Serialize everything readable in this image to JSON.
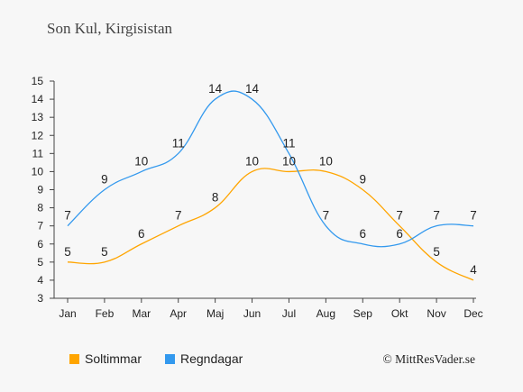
{
  "chart_data": {
    "type": "line",
    "title": "Son Kul, Kirgisistan",
    "categories": [
      "Jan",
      "Feb",
      "Mar",
      "Apr",
      "Maj",
      "Jun",
      "Jul",
      "Aug",
      "Sep",
      "Okt",
      "Nov",
      "Dec"
    ],
    "yticks": [
      "3",
      "4",
      "5",
      "6",
      "7",
      "8",
      "9",
      "10",
      "11",
      "12",
      "13",
      "14",
      "15"
    ],
    "ylim": [
      3,
      15
    ],
    "grid": false,
    "legend_position": "bottom-left",
    "series": [
      {
        "name": "Soltimmar",
        "color": "#FFA500",
        "values": [
          5,
          5,
          6,
          7,
          8,
          10,
          10,
          10,
          9,
          7,
          5,
          4
        ],
        "labels": [
          "5",
          "5",
          "6",
          "7",
          "8",
          "10",
          "10",
          "10",
          "9",
          "7",
          "5",
          "4"
        ]
      },
      {
        "name": "Regndagar",
        "color": "#3399EE",
        "values": [
          7,
          9,
          10,
          11,
          14,
          14,
          11,
          7,
          6,
          6,
          7,
          7
        ],
        "labels": [
          "7",
          "9",
          "10",
          "11",
          "14",
          "14",
          "11",
          "7",
          "6",
          "6",
          "7",
          "7"
        ]
      }
    ],
    "copyright": "© MittResVader.se"
  }
}
